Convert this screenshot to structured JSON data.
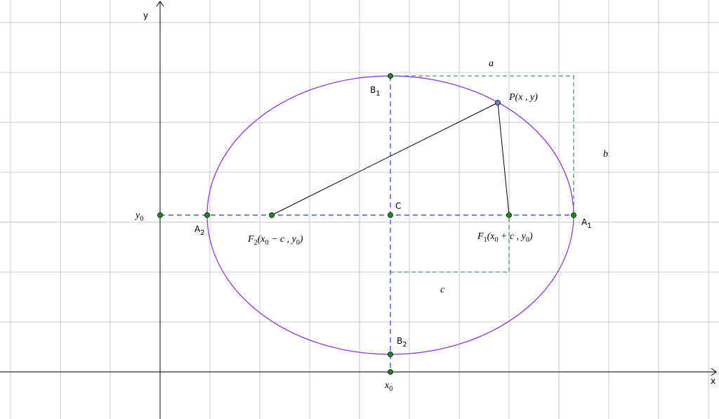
{
  "axes": {
    "x": "x",
    "y": "y"
  },
  "labels": {
    "a": "a",
    "b": "b",
    "c": "c",
    "C": "C",
    "B1": [
      "B",
      "1"
    ],
    "B2": [
      "B",
      "2"
    ],
    "A1": [
      "A",
      "1"
    ],
    "A2": [
      "A",
      "2"
    ],
    "P": "P(x , y)",
    "x0": [
      "x",
      "0"
    ],
    "y0": [
      "y",
      "0"
    ],
    "F1": [
      "F",
      "1",
      "(x",
      "0",
      " + c , y",
      "0",
      ")"
    ],
    "F2": [
      "F",
      "2",
      "(x",
      "0",
      " − c , y",
      "0",
      ")"
    ]
  }
}
